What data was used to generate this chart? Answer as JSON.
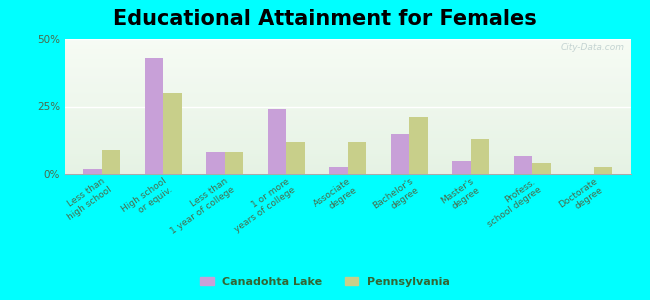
{
  "title": "Educational Attainment for Females",
  "categories": [
    "Less than\nhigh school",
    "High school\nor equiv.",
    "Less than\n1 year of college",
    "1 or more\nyears of college",
    "Associate\ndegree",
    "Bachelor's\ndegree",
    "Master's\ndegree",
    "Profess.\nschool degree",
    "Doctorate\ndegree"
  ],
  "canadohta_values": [
    2.0,
    43.0,
    8.0,
    24.0,
    2.5,
    15.0,
    5.0,
    6.5,
    0.0
  ],
  "pennsylvania_values": [
    9.0,
    30.0,
    8.0,
    12.0,
    12.0,
    21.0,
    13.0,
    4.0,
    2.5
  ],
  "canadohta_color": "#c8a0d8",
  "pennsylvania_color": "#c8cf8a",
  "background_color": "#00ffff",
  "plot_bg": "#eef5e8",
  "ylim": [
    0,
    50
  ],
  "yticks": [
    0,
    25,
    50
  ],
  "ytick_labels": [
    "0%",
    "25%",
    "50%"
  ],
  "watermark": "City-Data.com",
  "legend_labels": [
    "Canadohta Lake",
    "Pennsylvania"
  ],
  "title_fontsize": 15,
  "tick_fontsize": 6.5
}
